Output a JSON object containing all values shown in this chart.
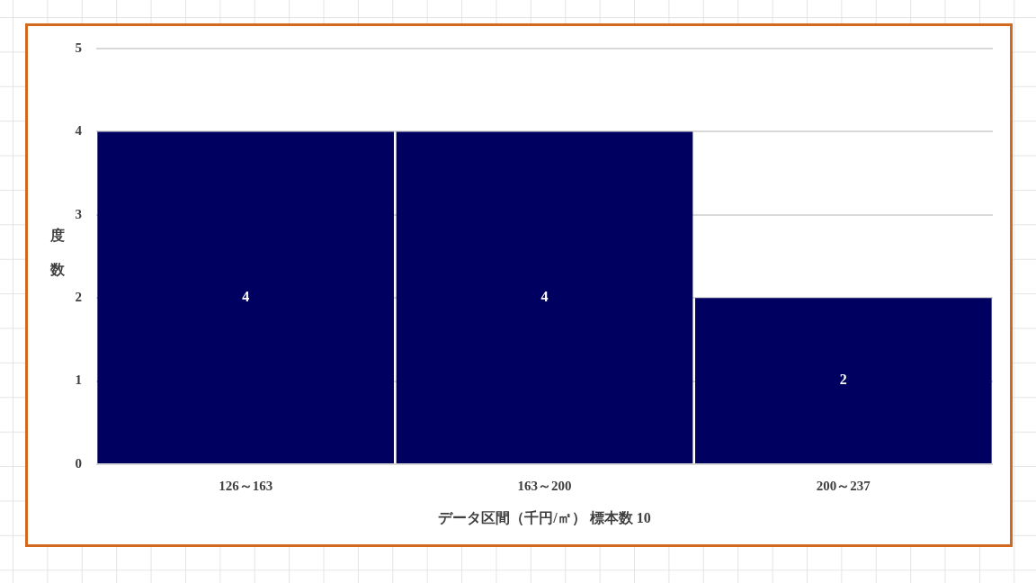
{
  "chart_data": {
    "type": "bar",
    "categories": [
      "126～163",
      "163～200",
      "200～237"
    ],
    "values": [
      4,
      4,
      2
    ],
    "color": "#000060",
    "xlabel": "データ区間（千円/㎡） 標本数 10",
    "ylabel": "度数",
    "ylim": [
      0,
      5
    ],
    "yticks": [
      0,
      1,
      2,
      3,
      4,
      5
    ],
    "grid": "y",
    "data_labels": true
  }
}
